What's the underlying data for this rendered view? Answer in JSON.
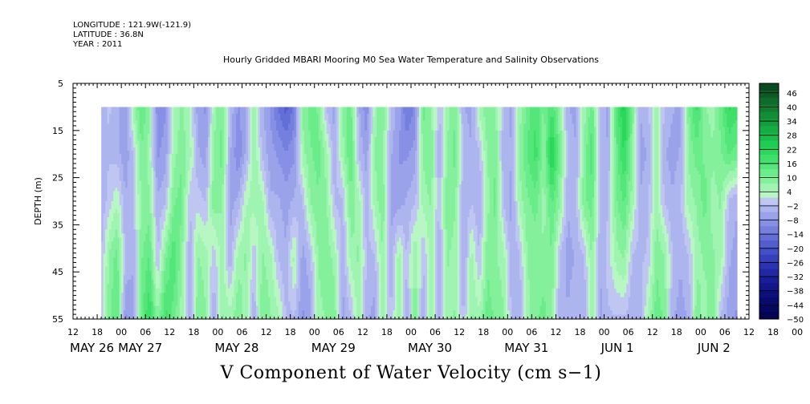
{
  "header": {
    "longitude": "LONGITUDE : 121.9W(-121.9)",
    "latitude": "LATITUDE : 36.8N",
    "year": "YEAR : 2011"
  },
  "chart_data": {
    "type": "heatmap",
    "title": "Hourly Gridded MBARI Mooring M0 Sea Water Temperature and Salinity Observations",
    "xlabel": "V Component of Water Velocity (cm s−1)",
    "ylabel": "DEPTH (m)",
    "x_range_hours": [
      0,
      168
    ],
    "x_start": "MAY 26 12:00",
    "data_start": "MAY 26 19:00",
    "y_range": [
      5,
      55
    ],
    "y_reversed": true,
    "data_top_depth": 10,
    "y_ticks": [
      5,
      15,
      25,
      35,
      45,
      55
    ],
    "x_hour_ticks": [
      "12",
      "18",
      "00",
      "06",
      "12",
      "18",
      "00",
      "06",
      "12",
      "18",
      "00",
      "06",
      "12",
      "18",
      "00",
      "06",
      "12",
      "18",
      "00",
      "06",
      "12",
      "18",
      "00",
      "06",
      "12",
      "18",
      "00",
      "06",
      "12",
      "18",
      "00",
      "06",
      "12",
      "18",
      "00",
      "06",
      "12"
    ],
    "x_day_labels": [
      {
        "label": "MAY 26",
        "hour": 0
      },
      {
        "label": "MAY 27",
        "hour": 12
      },
      {
        "label": "MAY 28",
        "hour": 36
      },
      {
        "label": "MAY 29",
        "hour": 60
      },
      {
        "label": "MAY 30",
        "hour": 84
      },
      {
        "label": "MAY 31",
        "hour": 108
      },
      {
        "label": "JUN  1",
        "hour": 132
      },
      {
        "label": "JUN  2",
        "hour": 156
      }
    ],
    "colorbar": {
      "min": -50,
      "max": 50,
      "labels": [
        "46",
        "40",
        "34",
        "28",
        "22",
        "16",
        "10",
        "4",
        "−2",
        "−8",
        "−14",
        "−20",
        "−26",
        "−32",
        "−38",
        "−44",
        "−50"
      ],
      "levels": [
        {
          "v": 46,
          "color": "#0a4a20"
        },
        {
          "v": 43,
          "color": "#0e5a26"
        },
        {
          "v": 40,
          "color": "#0f6b2c"
        },
        {
          "v": 37,
          "color": "#107c32"
        },
        {
          "v": 34,
          "color": "#128d38"
        },
        {
          "v": 31,
          "color": "#149e3e"
        },
        {
          "v": 28,
          "color": "#16ae44"
        },
        {
          "v": 25,
          "color": "#18be4a"
        },
        {
          "v": 22,
          "color": "#1fcd52"
        },
        {
          "v": 19,
          "color": "#2ad85c"
        },
        {
          "v": 16,
          "color": "#3fe06a"
        },
        {
          "v": 13,
          "color": "#55e67a"
        },
        {
          "v": 10,
          "color": "#6aec8a"
        },
        {
          "v": 7,
          "color": "#84f09c"
        },
        {
          "v": 4,
          "color": "#9ef4b0"
        },
        {
          "v": 1,
          "color": "#b8f7c4"
        },
        {
          "v": -2,
          "color": "#c0c6f2"
        },
        {
          "v": -5,
          "color": "#adb5ee"
        },
        {
          "v": -8,
          "color": "#9aa3ea"
        },
        {
          "v": -11,
          "color": "#8790e4"
        },
        {
          "v": -14,
          "color": "#7580de"
        },
        {
          "v": -17,
          "color": "#636fd6"
        },
        {
          "v": -20,
          "color": "#525ecf"
        },
        {
          "v": -23,
          "color": "#434fc6"
        },
        {
          "v": -26,
          "color": "#3540bc"
        },
        {
          "v": -29,
          "color": "#2a33b1"
        },
        {
          "v": -32,
          "color": "#2028a6"
        },
        {
          "v": -35,
          "color": "#181e98"
        },
        {
          "v": -38,
          "color": "#12168a"
        },
        {
          "v": -41,
          "color": "#0d107c"
        },
        {
          "v": -44,
          "color": "#080b6e"
        },
        {
          "v": -47,
          "color": "#050860"
        },
        {
          "v": -50,
          "color": "#030552"
        }
      ]
    },
    "columns": [
      {
        "t": 7,
        "v": [
          -5,
          -4,
          -6,
          -4,
          -3
        ]
      },
      {
        "t": 9,
        "v": [
          -3,
          -4,
          -2,
          6,
          8
        ]
      },
      {
        "t": 11,
        "v": [
          -6,
          -5,
          2,
          10,
          12
        ]
      },
      {
        "t": 13,
        "v": [
          -8,
          -9,
          -6,
          -4,
          -10
        ]
      },
      {
        "t": 15,
        "v": [
          4,
          -3,
          -4,
          -6,
          -8
        ]
      },
      {
        "t": 17,
        "v": [
          12,
          8,
          6,
          8,
          10
        ]
      },
      {
        "t": 19,
        "v": [
          6,
          4,
          6,
          12,
          18
        ]
      },
      {
        "t": 21,
        "v": [
          -12,
          -10,
          -6,
          -4,
          6
        ]
      },
      {
        "t": 23,
        "v": [
          -10,
          -8,
          -4,
          8,
          16
        ]
      },
      {
        "t": 25,
        "v": [
          2,
          4,
          8,
          14,
          10
        ]
      },
      {
        "t": 27,
        "v": [
          6,
          8,
          10,
          6,
          4
        ]
      },
      {
        "t": 29,
        "v": [
          2,
          4,
          -3,
          -6,
          -8
        ]
      },
      {
        "t": 31,
        "v": [
          -8,
          -6,
          -2,
          6,
          8
        ]
      },
      {
        "t": 33,
        "v": [
          -10,
          -8,
          -4,
          4,
          6
        ]
      },
      {
        "t": 35,
        "v": [
          4,
          6,
          8,
          -3,
          -6
        ]
      },
      {
        "t": 37,
        "v": [
          8,
          10,
          6,
          4,
          6
        ]
      },
      {
        "t": 39,
        "v": [
          -4,
          -6,
          -8,
          -6,
          4
        ]
      },
      {
        "t": 41,
        "v": [
          -10,
          -12,
          -6,
          4,
          8
        ]
      },
      {
        "t": 43,
        "v": [
          -8,
          -6,
          2,
          6,
          4
        ]
      },
      {
        "t": 45,
        "v": [
          4,
          6,
          4,
          -3,
          -6
        ]
      },
      {
        "t": 47,
        "v": [
          -6,
          -4,
          4,
          6,
          8
        ]
      },
      {
        "t": 49,
        "v": [
          -10,
          -8,
          -6,
          4,
          6
        ]
      },
      {
        "t": 51,
        "v": [
          -16,
          -10,
          -6,
          -4,
          4
        ]
      },
      {
        "t": 53,
        "v": [
          -20,
          -12,
          -8,
          -6,
          -4
        ]
      },
      {
        "t": 55,
        "v": [
          -14,
          -10,
          -6,
          4,
          -4
        ]
      },
      {
        "t": 57,
        "v": [
          6,
          4,
          -4,
          -8,
          -10
        ]
      },
      {
        "t": 59,
        "v": [
          10,
          8,
          6,
          -4,
          -8
        ]
      },
      {
        "t": 61,
        "v": [
          8,
          10,
          8,
          6,
          4
        ]
      },
      {
        "t": 63,
        "v": [
          -4,
          4,
          6,
          8,
          6
        ]
      },
      {
        "t": 65,
        "v": [
          -8,
          -6,
          -4,
          4,
          8
        ]
      },
      {
        "t": 67,
        "v": [
          6,
          4,
          -4,
          -6,
          -8
        ]
      },
      {
        "t": 69,
        "v": [
          10,
          12,
          8,
          4,
          -4
        ]
      },
      {
        "t": 71,
        "v": [
          -6,
          -4,
          4,
          6,
          4
        ]
      },
      {
        "t": 73,
        "v": [
          -12,
          -8,
          -6,
          -4,
          -6
        ]
      },
      {
        "t": 75,
        "v": [
          4,
          6,
          4,
          -4,
          -8
        ]
      },
      {
        "t": 77,
        "v": [
          8,
          6,
          8,
          6,
          4
        ]
      },
      {
        "t": 79,
        "v": [
          -4,
          -6,
          -8,
          -6,
          -4
        ]
      },
      {
        "t": 81,
        "v": [
          -8,
          -10,
          -8,
          4,
          6
        ]
      },
      {
        "t": 83,
        "v": [
          -16,
          -10,
          -6,
          -4,
          -6
        ]
      },
      {
        "t": 85,
        "v": [
          -12,
          -8,
          -4,
          6,
          8
        ]
      },
      {
        "t": 87,
        "v": [
          10,
          6,
          4,
          -4,
          -6
        ]
      },
      {
        "t": 89,
        "v": [
          6,
          8,
          6,
          4,
          4
        ]
      },
      {
        "t": 91,
        "v": [
          -4,
          -6,
          -4,
          -6,
          -8
        ]
      },
      {
        "t": 93,
        "v": [
          4,
          6,
          8,
          6,
          4
        ]
      },
      {
        "t": 95,
        "v": [
          8,
          10,
          6,
          4,
          6
        ]
      },
      {
        "t": 97,
        "v": [
          -6,
          -4,
          -6,
          -8,
          -4
        ]
      },
      {
        "t": 99,
        "v": [
          -8,
          -6,
          -4,
          4,
          6
        ]
      },
      {
        "t": 101,
        "v": [
          4,
          -4,
          -6,
          -4,
          4
        ]
      },
      {
        "t": 103,
        "v": [
          8,
          6,
          4,
          8,
          10
        ]
      },
      {
        "t": 105,
        "v": [
          6,
          8,
          10,
          6,
          8
        ]
      },
      {
        "t": 107,
        "v": [
          -4,
          -6,
          -4,
          4,
          6
        ]
      },
      {
        "t": 109,
        "v": [
          -8,
          -6,
          -8,
          -6,
          -4
        ]
      },
      {
        "t": 111,
        "v": [
          4,
          6,
          4,
          -4,
          -6
        ]
      },
      {
        "t": 113,
        "v": [
          10,
          12,
          8,
          6,
          4
        ]
      },
      {
        "t": 115,
        "v": [
          14,
          16,
          10,
          6,
          8
        ]
      },
      {
        "t": 117,
        "v": [
          8,
          6,
          4,
          6,
          10
        ]
      },
      {
        "t": 119,
        "v": [
          14,
          22,
          12,
          8,
          6
        ]
      },
      {
        "t": 121,
        "v": [
          6,
          8,
          6,
          -4,
          -6
        ]
      },
      {
        "t": 123,
        "v": [
          -6,
          -4,
          -6,
          -8,
          -6
        ]
      },
      {
        "t": 125,
        "v": [
          -8,
          -6,
          -4,
          -6,
          -4
        ]
      },
      {
        "t": 127,
        "v": [
          4,
          6,
          8,
          -4,
          -6
        ]
      },
      {
        "t": 129,
        "v": [
          10,
          14,
          10,
          6,
          4
        ]
      },
      {
        "t": 131,
        "v": [
          -4,
          -6,
          -4,
          -6,
          -8
        ]
      },
      {
        "t": 133,
        "v": [
          -8,
          -6,
          -4,
          -2,
          -4
        ]
      },
      {
        "t": 135,
        "v": [
          12,
          10,
          8,
          4,
          -4
        ]
      },
      {
        "t": 137,
        "v": [
          22,
          18,
          12,
          6,
          -4
        ]
      },
      {
        "t": 139,
        "v": [
          8,
          6,
          4,
          -4,
          -6
        ]
      },
      {
        "t": 141,
        "v": [
          -6,
          -8,
          -6,
          -4,
          -6
        ]
      },
      {
        "t": 143,
        "v": [
          -4,
          -6,
          -4,
          -3,
          4
        ]
      },
      {
        "t": 145,
        "v": [
          4,
          6,
          4,
          8,
          10
        ]
      },
      {
        "t": 147,
        "v": [
          -4,
          -6,
          -4,
          6,
          8
        ]
      },
      {
        "t": 149,
        "v": [
          -6,
          -8,
          -6,
          -4,
          -6
        ]
      },
      {
        "t": 151,
        "v": [
          -8,
          -6,
          -4,
          -6,
          -8
        ]
      },
      {
        "t": 153,
        "v": [
          8,
          6,
          4,
          -4,
          -6
        ]
      },
      {
        "t": 155,
        "v": [
          16,
          10,
          6,
          4,
          8
        ]
      },
      {
        "t": 157,
        "v": [
          6,
          8,
          10,
          6,
          4
        ]
      },
      {
        "t": 159,
        "v": [
          4,
          6,
          4,
          6,
          8
        ]
      },
      {
        "t": 161,
        "v": [
          10,
          8,
          6,
          4,
          -4
        ]
      },
      {
        "t": 163,
        "v": [
          18,
          12,
          -4,
          -6,
          -8
        ]
      },
      {
        "t": 165,
        "v": [
          16,
          10,
          -6,
          -8,
          -10
        ]
      }
    ],
    "column_depths": [
      10,
      20,
      30,
      42,
      55
    ]
  }
}
